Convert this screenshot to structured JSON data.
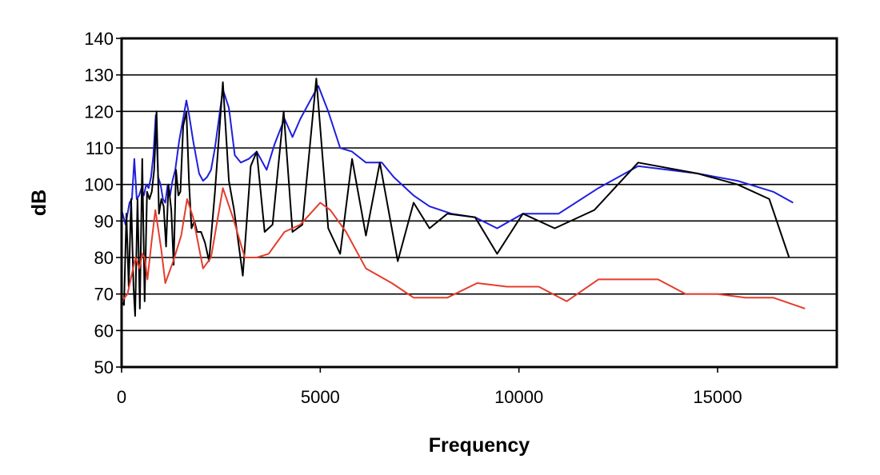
{
  "chart_data": {
    "type": "line",
    "title": "",
    "xlabel": "Frequency",
    "ylabel": "dB",
    "xlim": [
      0,
      18000
    ],
    "ylim": [
      50,
      140
    ],
    "xticks": [
      0,
      5000,
      10000,
      15000
    ],
    "xtick_labels": [
      "0",
      "5000",
      "10000",
      "15000"
    ],
    "yticks": [
      50,
      60,
      70,
      80,
      90,
      100,
      110,
      120,
      130,
      140
    ],
    "ytick_labels": [
      "50",
      "60",
      "70",
      "80",
      "90",
      "100",
      "110",
      "120",
      "130",
      "140"
    ],
    "grid": "horizontal",
    "legend": "none",
    "series": [
      {
        "color": "#1f1fdd",
        "points": [
          [
            0,
            93
          ],
          [
            100,
            89
          ],
          [
            200,
            95
          ],
          [
            260,
            96
          ],
          [
            320,
            107
          ],
          [
            380,
            96
          ],
          [
            440,
            97
          ],
          [
            500,
            99
          ],
          [
            560,
            97
          ],
          [
            620,
            100
          ],
          [
            680,
            99
          ],
          [
            740,
            102
          ],
          [
            800,
            108
          ],
          [
            860,
            119
          ],
          [
            920,
            102
          ],
          [
            980,
            100
          ],
          [
            1040,
            96
          ],
          [
            1100,
            95
          ],
          [
            1160,
            100
          ],
          [
            1220,
            97
          ],
          [
            1280,
            101
          ],
          [
            1350,
            104
          ],
          [
            1450,
            112
          ],
          [
            1630,
            123
          ],
          [
            1700,
            119
          ],
          [
            1800,
            112
          ],
          [
            1950,
            103
          ],
          [
            2050,
            101
          ],
          [
            2150,
            102
          ],
          [
            2250,
            104
          ],
          [
            2350,
            110
          ],
          [
            2550,
            126
          ],
          [
            2700,
            121
          ],
          [
            2850,
            108
          ],
          [
            3000,
            106
          ],
          [
            3200,
            107
          ],
          [
            3400,
            109
          ],
          [
            3650,
            104
          ],
          [
            3850,
            111
          ],
          [
            4100,
            118
          ],
          [
            4300,
            113
          ],
          [
            4500,
            118
          ],
          [
            4750,
            123
          ],
          [
            4950,
            127
          ],
          [
            5200,
            120
          ],
          [
            5500,
            110
          ],
          [
            5800,
            109
          ],
          [
            6150,
            106
          ],
          [
            6550,
            106
          ],
          [
            6850,
            102
          ],
          [
            7350,
            97
          ],
          [
            7750,
            94
          ],
          [
            8300,
            92
          ],
          [
            8900,
            91
          ],
          [
            9450,
            88
          ],
          [
            10100,
            92
          ],
          [
            10600,
            92
          ],
          [
            11000,
            92
          ],
          [
            12000,
            99
          ],
          [
            13000,
            105
          ],
          [
            14500,
            103
          ],
          [
            15500,
            101
          ],
          [
            16400,
            98
          ],
          [
            16900,
            95
          ]
        ]
      },
      {
        "color": "#000000",
        "points": [
          [
            0,
            68
          ],
          [
            60,
            67
          ],
          [
            120,
            92
          ],
          [
            180,
            72
          ],
          [
            240,
            96
          ],
          [
            300,
            72
          ],
          [
            340,
            64
          ],
          [
            400,
            96
          ],
          [
            460,
            66
          ],
          [
            520,
            107
          ],
          [
            580,
            68
          ],
          [
            640,
            98
          ],
          [
            700,
            96
          ],
          [
            760,
            98
          ],
          [
            820,
            104
          ],
          [
            880,
            120
          ],
          [
            940,
            92
          ],
          [
            1000,
            96
          ],
          [
            1060,
            94
          ],
          [
            1120,
            83
          ],
          [
            1180,
            100
          ],
          [
            1250,
            93
          ],
          [
            1310,
            78
          ],
          [
            1370,
            104
          ],
          [
            1430,
            97
          ],
          [
            1480,
            98
          ],
          [
            1550,
            116
          ],
          [
            1630,
            120
          ],
          [
            1700,
            100
          ],
          [
            1760,
            88
          ],
          [
            1830,
            90
          ],
          [
            1900,
            87
          ],
          [
            2000,
            87
          ],
          [
            2100,
            84
          ],
          [
            2200,
            79
          ],
          [
            2350,
            98
          ],
          [
            2550,
            128
          ],
          [
            2700,
            101
          ],
          [
            2830,
            93
          ],
          [
            3050,
            75
          ],
          [
            3250,
            105
          ],
          [
            3400,
            109
          ],
          [
            3600,
            87
          ],
          [
            3800,
            89
          ],
          [
            4080,
            120
          ],
          [
            4300,
            87
          ],
          [
            4550,
            89
          ],
          [
            4900,
            129
          ],
          [
            5200,
            88
          ],
          [
            5500,
            81
          ],
          [
            5800,
            107
          ],
          [
            6150,
            86
          ],
          [
            6500,
            106
          ],
          [
            6950,
            79
          ],
          [
            7350,
            95
          ],
          [
            7750,
            88
          ],
          [
            8200,
            92
          ],
          [
            8900,
            91
          ],
          [
            9450,
            81
          ],
          [
            10100,
            92
          ],
          [
            10900,
            88
          ],
          [
            11900,
            93
          ],
          [
            13000,
            106
          ],
          [
            14500,
            103
          ],
          [
            15500,
            100
          ],
          [
            16300,
            96
          ],
          [
            16800,
            80
          ]
        ]
      },
      {
        "color": "#e53d2e",
        "points": [
          [
            0,
            68
          ],
          [
            150,
            70
          ],
          [
            250,
            75
          ],
          [
            350,
            80
          ],
          [
            450,
            77
          ],
          [
            520,
            81
          ],
          [
            580,
            80
          ],
          [
            650,
            74
          ],
          [
            750,
            84
          ],
          [
            850,
            93
          ],
          [
            1000,
            82
          ],
          [
            1100,
            73
          ],
          [
            1300,
            79
          ],
          [
            1500,
            86
          ],
          [
            1650,
            96
          ],
          [
            1800,
            91
          ],
          [
            2050,
            77
          ],
          [
            2250,
            80
          ],
          [
            2550,
            99
          ],
          [
            2800,
            91
          ],
          [
            3100,
            80
          ],
          [
            3400,
            80
          ],
          [
            3700,
            81
          ],
          [
            4100,
            87
          ],
          [
            4500,
            89
          ],
          [
            4750,
            92
          ],
          [
            5000,
            95
          ],
          [
            5250,
            93
          ],
          [
            5650,
            87
          ],
          [
            6150,
            77
          ],
          [
            6800,
            73
          ],
          [
            7350,
            69
          ],
          [
            8200,
            69
          ],
          [
            8950,
            73
          ],
          [
            9700,
            72
          ],
          [
            10500,
            72
          ],
          [
            11200,
            68
          ],
          [
            12000,
            74
          ],
          [
            13500,
            74
          ],
          [
            14200,
            70
          ],
          [
            15000,
            70
          ],
          [
            15700,
            69
          ],
          [
            16400,
            69
          ],
          [
            17200,
            66
          ]
        ]
      }
    ]
  }
}
